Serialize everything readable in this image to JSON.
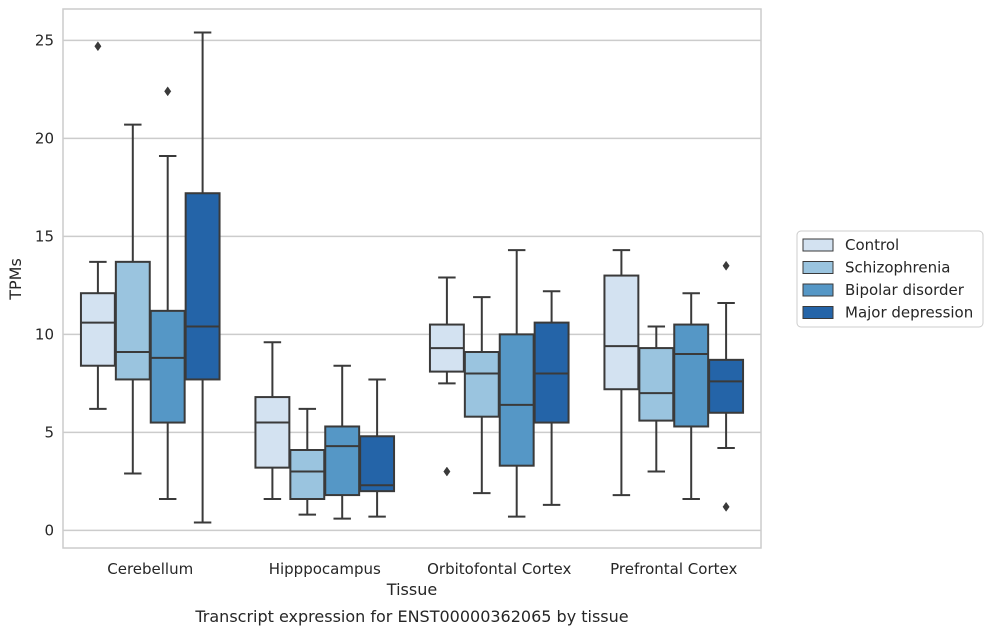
{
  "chart_data": {
    "type": "boxplot",
    "title": "",
    "caption": "Transcript expression for ENST00000362065 by tissue",
    "xlabel": "Tissue",
    "ylabel": "TPMs",
    "ylim": [
      -0.9,
      26.6
    ],
    "yticks": [
      0,
      5,
      10,
      15,
      20,
      25
    ],
    "grid": "horizontal",
    "legend_position": "right",
    "categories": [
      "Cerebellum",
      "Hipppocampus",
      "Orbitofontal Cortex",
      "Prefrontal Cortex"
    ],
    "series": [
      {
        "name": "Control",
        "color": "#d3e2f1",
        "boxes": [
          {
            "whisker_low": 6.2,
            "q1": 8.4,
            "median": 10.6,
            "q3": 12.1,
            "whisker_high": 13.7,
            "outliers": [
              24.7
            ]
          },
          {
            "whisker_low": 1.6,
            "q1": 3.2,
            "median": 5.5,
            "q3": 6.8,
            "whisker_high": 9.6,
            "outliers": []
          },
          {
            "whisker_low": 7.5,
            "q1": 8.1,
            "median": 9.3,
            "q3": 10.5,
            "whisker_high": 12.9,
            "outliers": [
              3.0
            ]
          },
          {
            "whisker_low": 1.8,
            "q1": 7.2,
            "median": 9.4,
            "q3": 13.0,
            "whisker_high": 14.3,
            "outliers": []
          }
        ]
      },
      {
        "name": "Schizophrenia",
        "color": "#9ac4df",
        "boxes": [
          {
            "whisker_low": 2.9,
            "q1": 7.7,
            "median": 9.1,
            "q3": 13.7,
            "whisker_high": 20.7,
            "outliers": []
          },
          {
            "whisker_low": 0.8,
            "q1": 1.6,
            "median": 3.0,
            "q3": 4.1,
            "whisker_high": 6.2,
            "outliers": []
          },
          {
            "whisker_low": 1.9,
            "q1": 5.8,
            "median": 8.0,
            "q3": 9.1,
            "whisker_high": 11.9,
            "outliers": []
          },
          {
            "whisker_low": 3.0,
            "q1": 5.6,
            "median": 7.0,
            "q3": 9.3,
            "whisker_high": 10.4,
            "outliers": []
          }
        ]
      },
      {
        "name": "Bipolar disorder",
        "color": "#5597c6",
        "boxes": [
          {
            "whisker_low": 1.6,
            "q1": 5.5,
            "median": 8.8,
            "q3": 11.2,
            "whisker_high": 19.1,
            "outliers": [
              22.4
            ]
          },
          {
            "whisker_low": 0.6,
            "q1": 1.8,
            "median": 4.3,
            "q3": 5.3,
            "whisker_high": 8.4,
            "outliers": []
          },
          {
            "whisker_low": 0.7,
            "q1": 3.3,
            "median": 6.4,
            "q3": 10.0,
            "whisker_high": 14.3,
            "outliers": []
          },
          {
            "whisker_low": 1.6,
            "q1": 5.3,
            "median": 9.0,
            "q3": 10.5,
            "whisker_high": 12.1,
            "outliers": []
          }
        ]
      },
      {
        "name": "Major depression",
        "color": "#2464a8",
        "boxes": [
          {
            "whisker_low": 0.4,
            "q1": 7.7,
            "median": 10.4,
            "q3": 17.2,
            "whisker_high": 25.4,
            "outliers": []
          },
          {
            "whisker_low": 0.7,
            "q1": 2.0,
            "median": 2.3,
            "q3": 4.8,
            "whisker_high": 7.7,
            "outliers": []
          },
          {
            "whisker_low": 1.3,
            "q1": 5.5,
            "median": 8.0,
            "q3": 10.6,
            "whisker_high": 12.2,
            "outliers": []
          },
          {
            "whisker_low": 4.2,
            "q1": 6.0,
            "median": 7.6,
            "q3": 8.7,
            "whisker_high": 11.6,
            "outliers": [
              13.5,
              1.2
            ]
          }
        ]
      }
    ]
  }
}
